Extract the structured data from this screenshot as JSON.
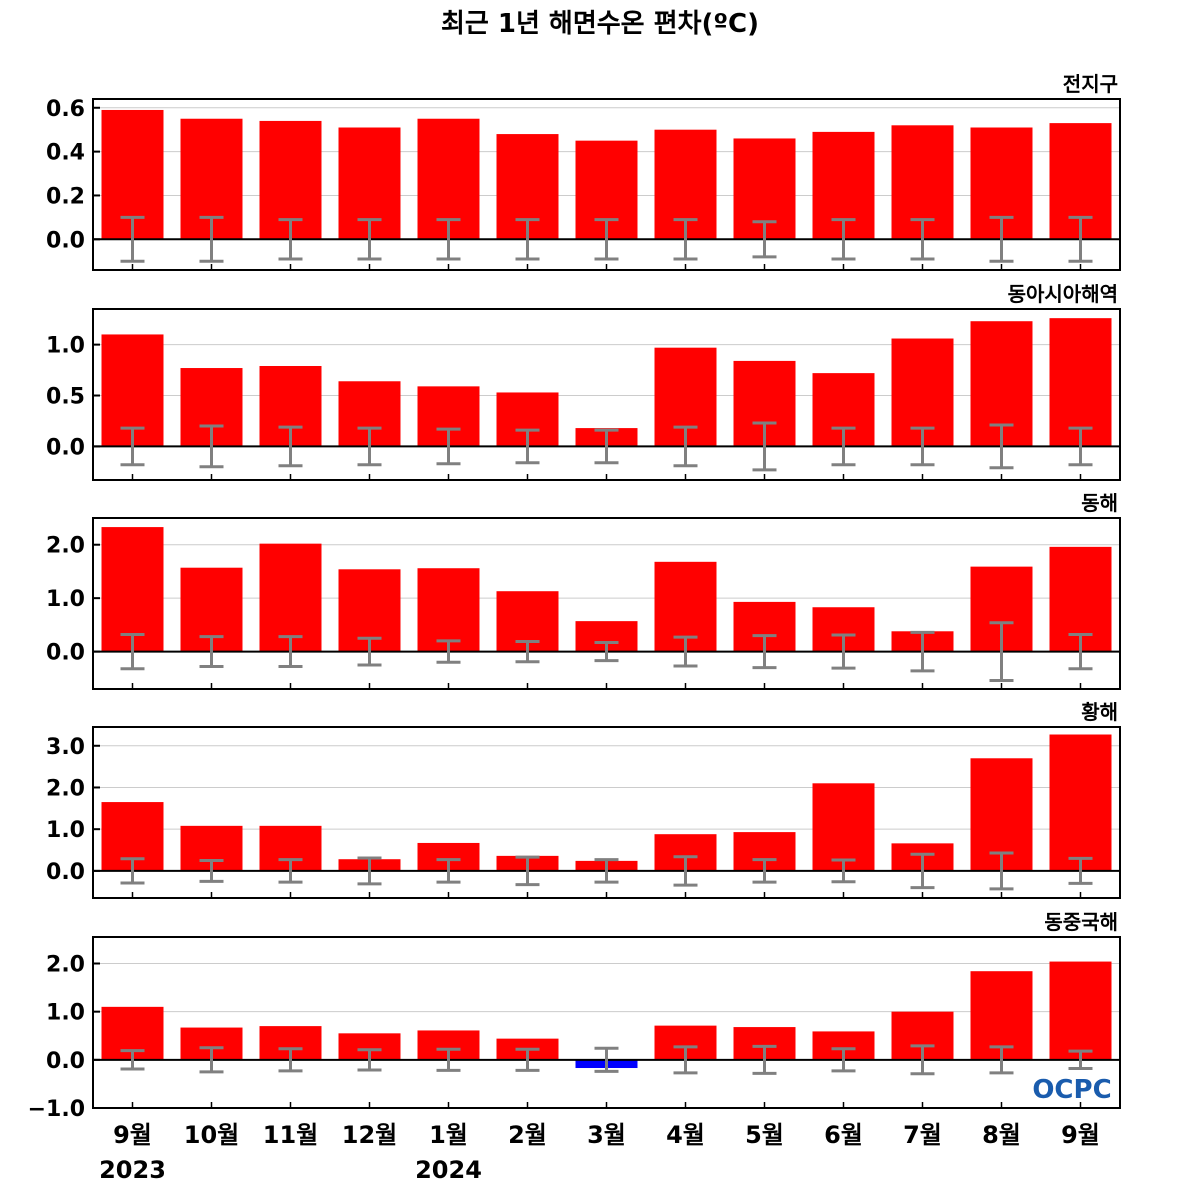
{
  "chart_data": {
    "title": "최근 1년 해면수온 편차(ºC)",
    "months": [
      "9월",
      "10월",
      "11월",
      "12월",
      "1월",
      "2월",
      "3월",
      "4월",
      "5월",
      "6월",
      "7월",
      "8월",
      "9월"
    ],
    "years": [
      {
        "label": "2023",
        "index": 0
      },
      {
        "label": "2024",
        "index": 4
      }
    ],
    "logo": "OCPC",
    "colors": {
      "positive": "#ff0000",
      "negative": "#0000ff",
      "errorbar": "#808080",
      "grid": "#cccccc"
    },
    "panels": [
      {
        "type": "bar",
        "name": "전지구",
        "ylim": [
          -0.14,
          0.64
        ],
        "ticks": [
          0.0,
          0.2,
          0.4,
          0.6
        ],
        "tick_labels": [
          "0.0",
          "0.2",
          "0.4",
          "0.6"
        ],
        "values": [
          0.59,
          0.55,
          0.54,
          0.51,
          0.55,
          0.48,
          0.45,
          0.5,
          0.46,
          0.49,
          0.52,
          0.51,
          0.53
        ],
        "errors": [
          0.1,
          0.1,
          0.09,
          0.09,
          0.09,
          0.09,
          0.09,
          0.09,
          0.08,
          0.09,
          0.09,
          0.1,
          0.1
        ]
      },
      {
        "type": "bar",
        "name": "동아시아해역",
        "ylim": [
          -0.33,
          1.35
        ],
        "ticks": [
          0.0,
          0.5,
          1.0
        ],
        "tick_labels": [
          "0.0",
          "0.5",
          "1.0"
        ],
        "values": [
          1.1,
          0.77,
          0.79,
          0.64,
          0.59,
          0.53,
          0.18,
          0.97,
          0.84,
          0.72,
          1.06,
          1.23,
          1.26
        ],
        "errors": [
          0.18,
          0.2,
          0.19,
          0.18,
          0.17,
          0.16,
          0.16,
          0.19,
          0.23,
          0.18,
          0.18,
          0.21,
          0.18
        ]
      },
      {
        "type": "bar",
        "name": "동해",
        "ylim": [
          -0.7,
          2.5
        ],
        "ticks": [
          0.0,
          1.0,
          2.0
        ],
        "tick_labels": [
          "0.0",
          "1.0",
          "2.0"
        ],
        "values": [
          2.33,
          1.57,
          2.02,
          1.54,
          1.56,
          1.13,
          0.57,
          1.68,
          0.93,
          0.83,
          0.38,
          1.59,
          1.96
        ],
        "errors": [
          0.32,
          0.28,
          0.28,
          0.25,
          0.2,
          0.19,
          0.17,
          0.27,
          0.3,
          0.31,
          0.36,
          0.54,
          0.32
        ]
      },
      {
        "type": "bar",
        "name": "황해",
        "ylim": [
          -0.65,
          3.45
        ],
        "ticks": [
          0.0,
          1.0,
          2.0,
          3.0
        ],
        "tick_labels": [
          "0.0",
          "1.0",
          "2.0",
          "3.0"
        ],
        "values": [
          1.65,
          1.08,
          1.08,
          0.28,
          0.67,
          0.36,
          0.24,
          0.88,
          0.93,
          2.1,
          0.66,
          2.7,
          3.27
        ],
        "errors": [
          0.29,
          0.25,
          0.27,
          0.31,
          0.27,
          0.33,
          0.27,
          0.34,
          0.27,
          0.26,
          0.4,
          0.43,
          0.3
        ]
      },
      {
        "type": "bar",
        "name": "동중국해",
        "ylim": [
          -1.0,
          2.55
        ],
        "ticks": [
          -1.0,
          0.0,
          1.0,
          2.0
        ],
        "tick_labels": [
          "−1.0",
          "0.0",
          "1.0",
          "2.0"
        ],
        "values": [
          1.1,
          0.67,
          0.7,
          0.55,
          0.61,
          0.44,
          -0.17,
          0.71,
          0.68,
          0.59,
          1.0,
          1.84,
          2.04
        ],
        "errors": [
          0.19,
          0.25,
          0.23,
          0.21,
          0.22,
          0.22,
          0.24,
          0.27,
          0.28,
          0.23,
          0.29,
          0.27,
          0.18
        ]
      }
    ]
  }
}
